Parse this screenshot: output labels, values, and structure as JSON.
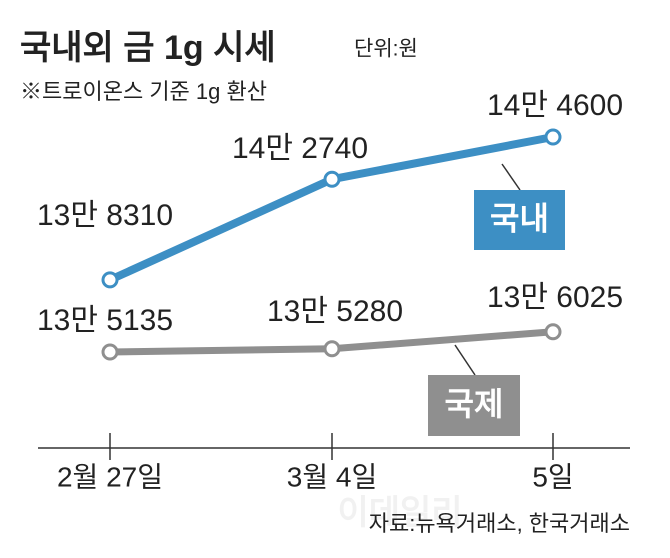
{
  "chart_data": {
    "type": "line",
    "title": "국내외 금 1g 시세",
    "unit": "단위:원",
    "subtitle": "※트로이온스 기준 1g 환산",
    "source": "자료:뉴욕거래소, 한국거래소",
    "watermark": "이데일리",
    "categories": [
      "2월 27일",
      "3월 4일",
      "5일"
    ],
    "series": [
      {
        "name": "국내",
        "color": "#3d8fc4",
        "values": [
          138310,
          142740,
          144600
        ],
        "value_labels": [
          "13만 8310",
          "14만 2740",
          "14만 4600"
        ]
      },
      {
        "name": "국제",
        "color": "#8f8f8f",
        "values": [
          135135,
          135280,
          136025
        ],
        "value_labels": [
          "13만 5135",
          "13만 5280",
          "13만 6025"
        ]
      }
    ]
  }
}
